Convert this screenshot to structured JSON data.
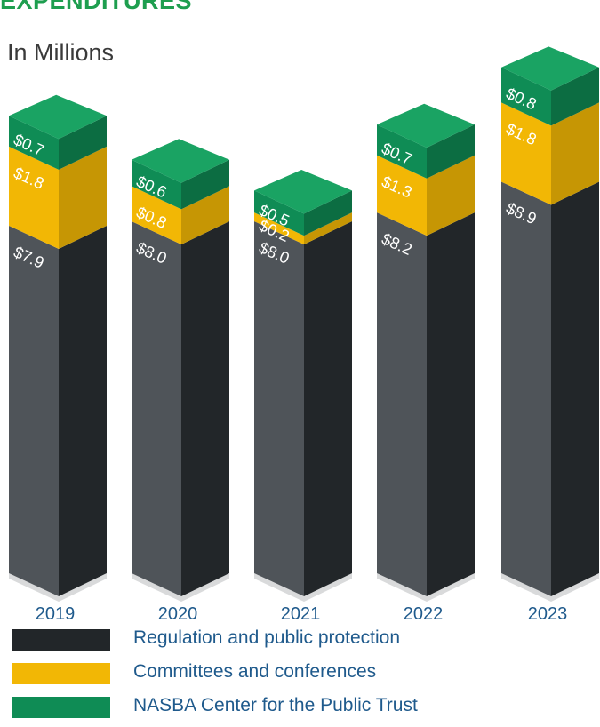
{
  "title": "EXPENDITURES",
  "subtitle": "In Millions",
  "colors": {
    "regulation": "#222629",
    "committees": "#f2b705",
    "nasba": "#0f8c55"
  },
  "chart_data": {
    "type": "bar",
    "stacked": true,
    "categories": [
      "2019",
      "2020",
      "2021",
      "2022",
      "2023"
    ],
    "series": [
      {
        "name": "Regulation and public protection",
        "values": [
          7.9,
          8.0,
          8.0,
          8.2,
          8.9
        ],
        "labels": [
          "$7.9",
          "$8.0",
          "$8.0",
          "$8.2",
          "$8.9"
        ]
      },
      {
        "name": "Committees and conferences",
        "values": [
          1.8,
          0.8,
          0.2,
          1.3,
          1.8
        ],
        "labels": [
          "$1.8",
          "$0.8",
          "$0.2",
          "$1.3",
          "$1.8"
        ]
      },
      {
        "name": "NASBA Center for the Public Trust",
        "values": [
          0.7,
          0.6,
          0.5,
          0.7,
          0.8
        ],
        "labels": [
          "$0.7",
          "$0.6",
          "$0.5",
          "$0.7",
          "$0.8"
        ]
      }
    ]
  }
}
